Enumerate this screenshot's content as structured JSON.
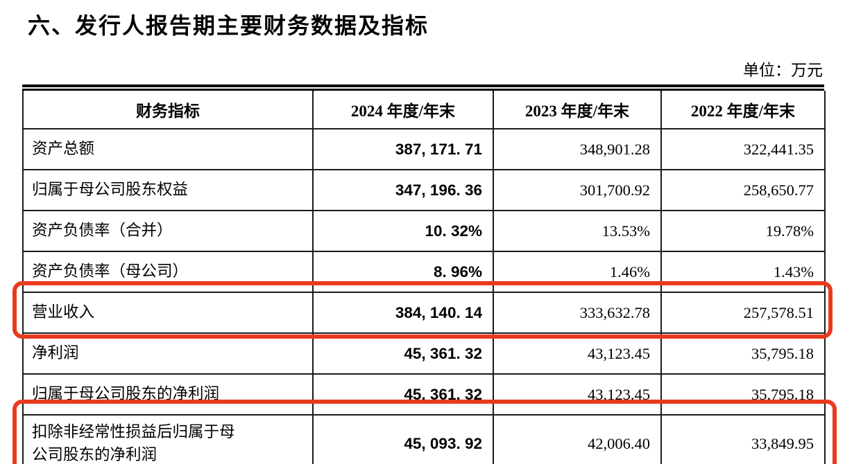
{
  "title": "六、发行人报告期主要财务数据及指标",
  "unit_label": "单位：万元",
  "colors": {
    "highlight_red": "#e83a1d",
    "text": "#000000",
    "table_border": "#000000"
  },
  "table": {
    "headers": [
      "财务指标",
      "2024 年度/年末",
      "2023 年度/年末",
      "2022 年度/年末"
    ],
    "rows": [
      {
        "label": "资产总额",
        "values": [
          "387, 171. 71",
          "348,901.28",
          "322,441.35"
        ],
        "highlighted": false
      },
      {
        "label": "归属于母公司股东权益",
        "values": [
          "347, 196. 36",
          "301,700.92",
          "258,650.77"
        ],
        "highlighted": false
      },
      {
        "label": "资产负债率（合并）",
        "values": [
          "10. 32%",
          "13.53%",
          "19.78%"
        ],
        "highlighted": false
      },
      {
        "label": "资产负债率（母公司）",
        "values": [
          "8. 96%",
          "1.46%",
          "1.43%"
        ],
        "highlighted": false
      },
      {
        "label": "营业收入",
        "values": [
          "384, 140. 14",
          "333,632.78",
          "257,578.51"
        ],
        "highlighted": true
      },
      {
        "label": "净利润",
        "values": [
          "45, 361. 32",
          "43,123.45",
          "35,795.18"
        ],
        "highlighted": false
      },
      {
        "label": "归属于母公司股东的净利润",
        "values": [
          "45, 361. 32",
          "43,123.45",
          "35,795.18"
        ],
        "highlighted": false
      },
      {
        "label": "扣除非经常性损益后归属于母\n公司股东的净利润",
        "values": [
          "45, 093. 92",
          "42,006.40",
          "33,849.95"
        ],
        "highlighted": true
      }
    ]
  }
}
